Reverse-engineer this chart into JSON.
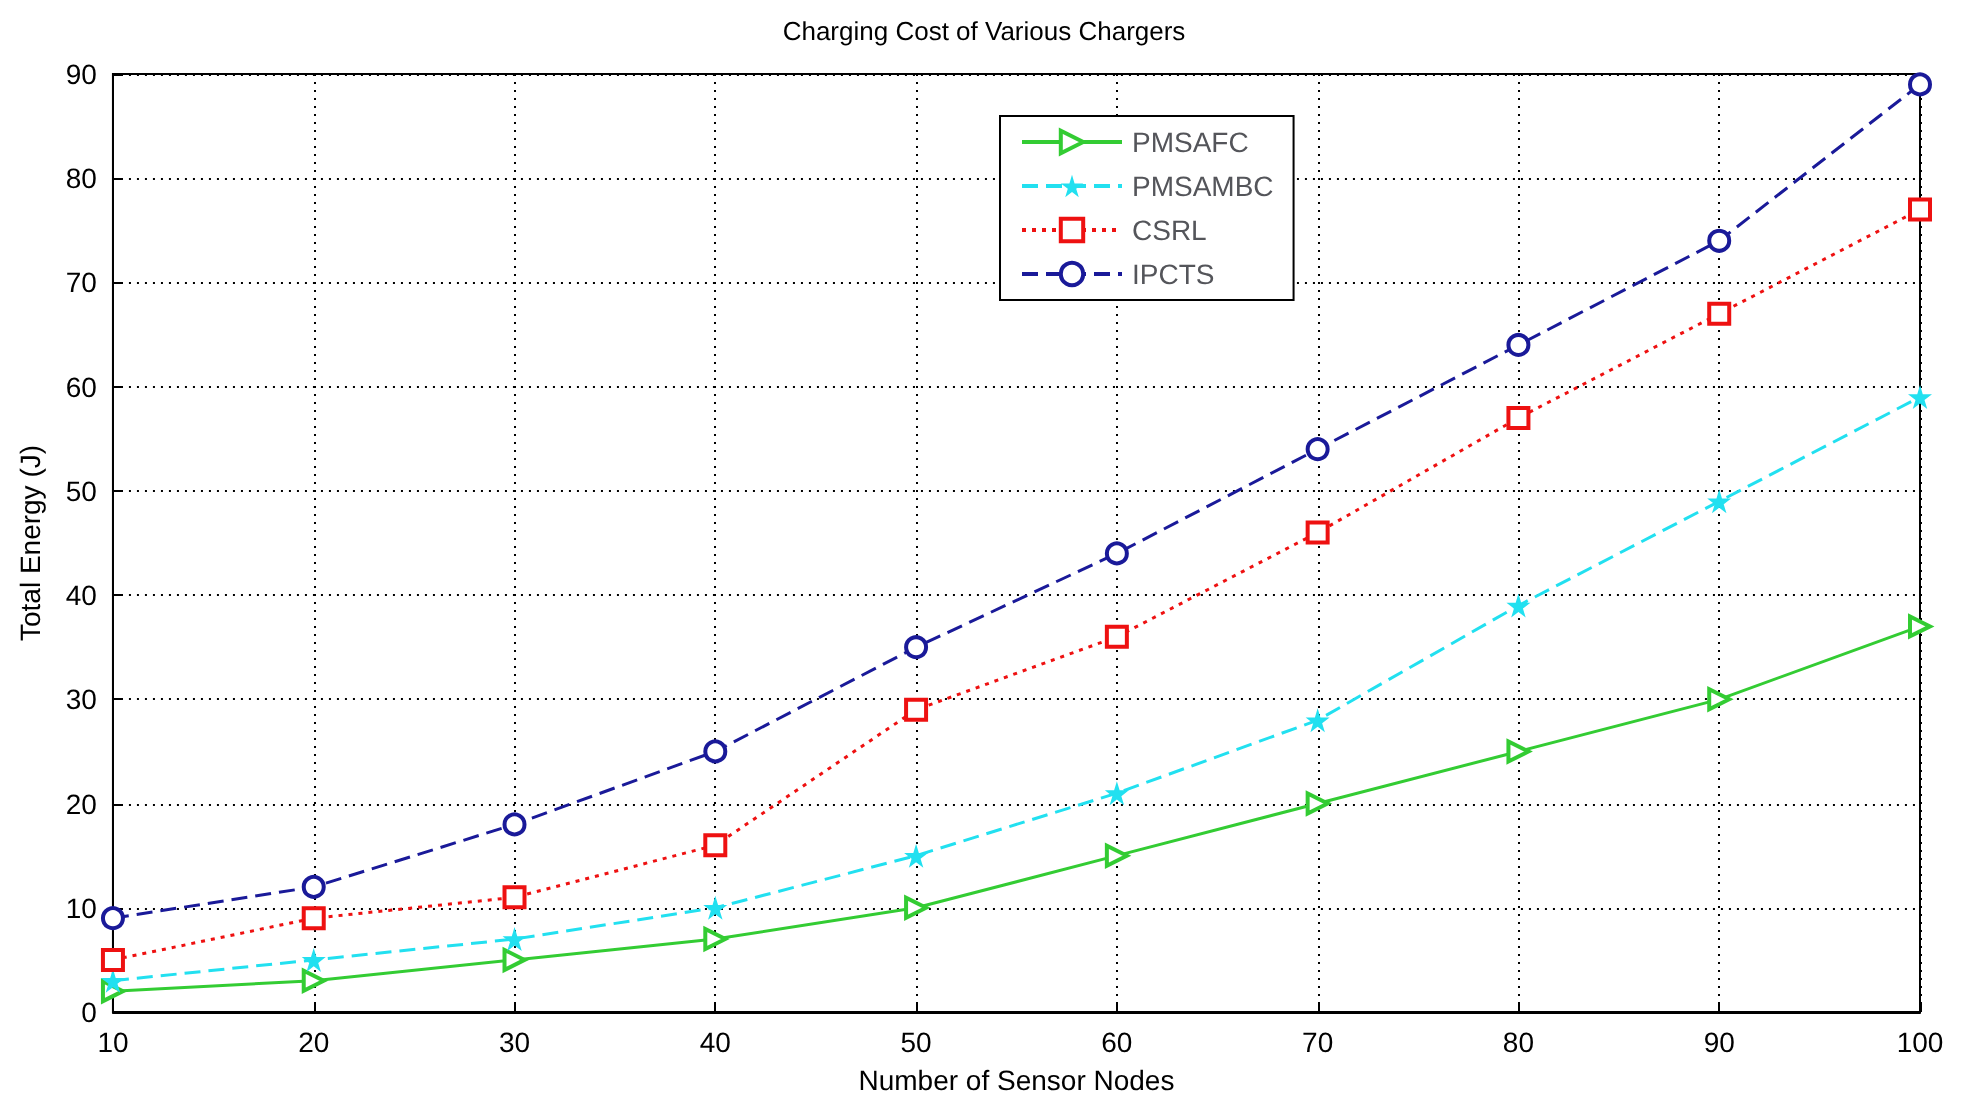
{
  "chart_data": {
    "type": "line",
    "title": "Charging Cost of Various Chargers",
    "xlabel": "Number of Sensor Nodes",
    "ylabel": "Total Energy (J)",
    "x": [
      10,
      20,
      30,
      40,
      50,
      60,
      70,
      80,
      90,
      100
    ],
    "series": [
      {
        "name": "PMSAFC",
        "color": "#33cc33",
        "marker": "triangle",
        "line_style": "solid",
        "values": [
          2,
          3,
          5,
          7,
          10,
          15,
          20,
          25,
          30,
          37
        ]
      },
      {
        "name": "PMSAMBC",
        "color": "#22e0f0",
        "marker": "star",
        "line_style": "dashed",
        "values": [
          3,
          5,
          7,
          10,
          15,
          21,
          28,
          39,
          49,
          59
        ]
      },
      {
        "name": "CSRL",
        "color": "#ee1111",
        "marker": "square",
        "line_style": "dotted",
        "values": [
          5,
          9,
          11,
          16,
          29,
          36,
          46,
          57,
          67,
          77
        ]
      },
      {
        "name": "IPCTS",
        "color": "#1a1a99",
        "marker": "circle",
        "line_style": "dashed",
        "values": [
          9,
          12,
          18,
          25,
          35,
          44,
          54,
          64,
          74,
          89
        ]
      }
    ],
    "xlim": [
      10,
      100
    ],
    "xticks": [
      10,
      20,
      30,
      40,
      50,
      60,
      70,
      80,
      90,
      100
    ],
    "ylim": [
      0,
      90
    ],
    "yticks": [
      0,
      10,
      20,
      30,
      40,
      50,
      60,
      70,
      80,
      90
    ],
    "grid": true,
    "legend": "top"
  }
}
